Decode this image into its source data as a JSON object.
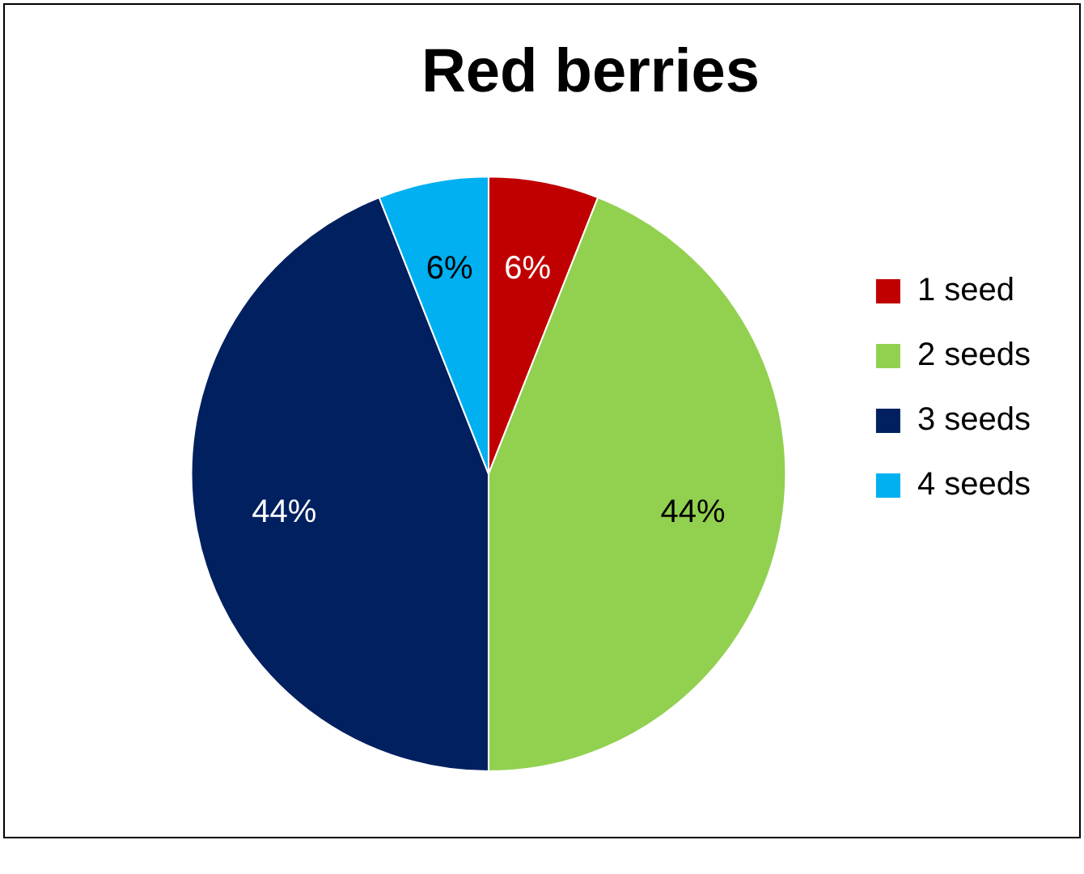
{
  "chart_data": {
    "type": "pie",
    "title": "Red berries",
    "categories": [
      "1 seed",
      "2 seeds",
      "3 seeds",
      "4 seeds"
    ],
    "values": [
      6,
      44,
      44,
      6
    ],
    "colors": [
      "#c00000",
      "#92d050",
      "#002060",
      "#00b0f0"
    ],
    "value_labels": [
      "6%",
      "44%",
      "44%",
      "6%"
    ],
    "legend": "right"
  }
}
